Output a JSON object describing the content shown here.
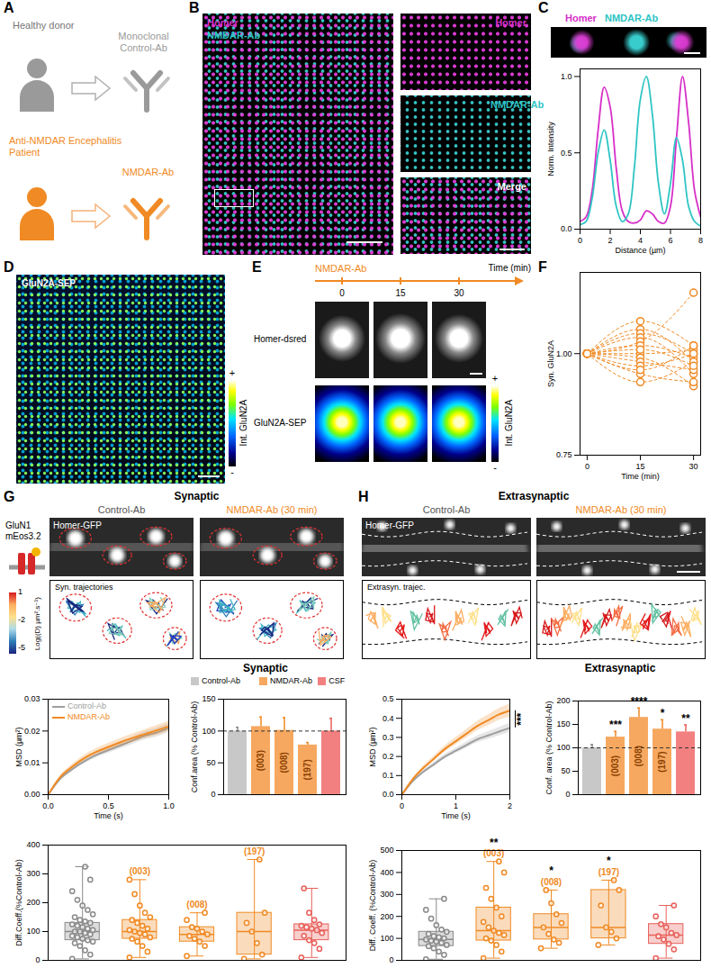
{
  "figure": {
    "letters": [
      "A",
      "B",
      "C",
      "D",
      "E",
      "F",
      "G",
      "H"
    ],
    "A": {
      "donor": "Healthy donor",
      "control_ab": "Monoclonal Control-Ab",
      "patient": "Anti-NMDAR Encephalitis Patient",
      "patient_ab": "NMDAR-Ab"
    },
    "B": {
      "overview": [
        "Homer",
        "NMDAR-Ab"
      ],
      "insets": [
        "Homer",
        "NMDAR-Ab",
        "Merge"
      ]
    },
    "D": {
      "image": "GluN2A-SEP",
      "colorbar": "Int. GluN2A",
      "colorbar_ends": [
        "+",
        "-"
      ]
    },
    "E": {
      "treatment": "NMDAR-Ab",
      "time_label": "Time (min)",
      "times": [
        0,
        15,
        30
      ],
      "rows": [
        "Homer-dsred",
        "GluN2A-SEP"
      ],
      "colorbar": "Int. GluN2A",
      "colorbar_ends": [
        "+",
        "-"
      ]
    },
    "G": {
      "title": "Synaptic",
      "columns": [
        "Control-Ab",
        "NMDAR-Ab (30 min)"
      ],
      "image": "Homer-GFP",
      "trajectories": "Syn. trajectories",
      "probe": [
        "GluN1",
        "mEos3.2"
      ],
      "colorbar": "Log((D) µm².s⁻¹)",
      "colorbar_ticks": [
        1,
        -2,
        -5
      ],
      "charts_title": "Synaptic"
    },
    "H": {
      "title": "Extrasynaptic",
      "columns": [
        "Control-Ab",
        "NMDAR-Ab (30 min)"
      ],
      "image": "Homer-GFP",
      "trajectories": "Extrasyn. trajec.",
      "charts_title": "Extrasynaptic"
    }
  },
  "chart_data": [
    {
      "type": "line",
      "x": [
        0,
        0.4,
        0.8,
        1.2,
        1.6,
        2.0,
        2.4,
        2.8,
        3.2,
        3.6,
        4.0,
        4.4,
        4.8,
        5.2,
        5.6,
        6.0,
        6.4,
        6.8,
        7.2,
        7.6,
        8.0
      ],
      "series": [
        {
          "name": "Homer",
          "color": "#d62fc8",
          "values": [
            0.05,
            0.08,
            0.25,
            0.65,
            0.93,
            0.8,
            0.4,
            0.12,
            0.05,
            0.04,
            0.06,
            0.12,
            0.1,
            0.05,
            0.04,
            0.15,
            0.6,
            1.0,
            0.7,
            0.25,
            0.08
          ]
        },
        {
          "name": "NMDAR-Ab",
          "color": "#2fc4c4",
          "values": [
            0.03,
            0.05,
            0.2,
            0.5,
            0.65,
            0.45,
            0.15,
            0.05,
            0.1,
            0.4,
            0.85,
            1.0,
            0.75,
            0.3,
            0.1,
            0.3,
            0.6,
            0.45,
            0.15,
            0.05,
            0.02
          ]
        }
      ],
      "xlabel": "Distance (µm)",
      "ylabel": "Norm. Intensity",
      "xlim": [
        0,
        8
      ],
      "xticks": [
        0,
        2,
        4,
        6,
        8
      ],
      "ylim": [
        0,
        1.05
      ],
      "yticks": [
        {
          "value": 0,
          "label": "0.0"
        },
        {
          "value": 0.5,
          "label": "0.5"
        },
        {
          "value": 1,
          "label": "1.0"
        }
      ]
    },
    {
      "type": "line",
      "x": [
        0,
        15,
        30
      ],
      "color": "#f08a24",
      "marker": "circle",
      "line_style": "dashed",
      "series": [
        {
          "values": [
            1,
            1.08,
            1.02
          ]
        },
        {
          "values": [
            1,
            1.06,
            0.98
          ]
        },
        {
          "values": [
            1,
            1.05,
            1.0
          ]
        },
        {
          "values": [
            1,
            1.04,
            0.95
          ]
        },
        {
          "values": [
            1,
            1.03,
            1.15
          ]
        },
        {
          "values": [
            1,
            1.02,
            0.99
          ]
        },
        {
          "values": [
            1,
            1.0,
            1.01
          ]
        },
        {
          "values": [
            1,
            0.99,
            0.92
          ]
        },
        {
          "values": [
            1,
            0.98,
            0.96
          ]
        },
        {
          "values": [
            1,
            0.97,
            1.0
          ]
        },
        {
          "values": [
            1,
            0.95,
            0.93
          ]
        },
        {
          "values": [
            1,
            0.93,
            0.98
          ]
        },
        {
          "values": [
            1,
            1.01,
            0.97
          ]
        },
        {
          "values": [
            1,
            0.96,
            1.02
          ]
        }
      ],
      "xlabel": "Time (min)",
      "ylabel": "Syn. GluN2A",
      "xlim": [
        -2,
        32
      ],
      "xticks": [
        0,
        15,
        30
      ],
      "ylim": [
        0.75,
        1.2
      ],
      "yticks": [
        0.75,
        {
          "value": 1,
          "label": "1.00"
        }
      ]
    },
    {
      "type": "line",
      "x": [
        0,
        0.1,
        0.2,
        0.3,
        0.4,
        0.5,
        0.6,
        0.7,
        0.8,
        0.9,
        1.0
      ],
      "series": [
        {
          "name": "Control-Ab",
          "color": "#9e9e9e",
          "values": [
            0,
            0.005,
            0.008,
            0.0105,
            0.0125,
            0.014,
            0.0155,
            0.017,
            0.0185,
            0.0195,
            0.021
          ],
          "sem": [
            0,
            0.0004,
            0.0006,
            0.0008,
            0.0009,
            0.001,
            0.0011,
            0.0012,
            0.0013,
            0.0014,
            0.0015
          ]
        },
        {
          "name": "NMDAR-Ab",
          "color": "#f08a24",
          "values": [
            0,
            0.0055,
            0.0088,
            0.0115,
            0.0135,
            0.015,
            0.0165,
            0.0178,
            0.019,
            0.0202,
            0.0215
          ],
          "sem": [
            0,
            0.0005,
            0.0007,
            0.0009,
            0.001,
            0.0011,
            0.0012,
            0.0013,
            0.0014,
            0.0015,
            0.0016
          ]
        }
      ],
      "xlabel": "Time (s)",
      "ylabel": "MSD (µm²)",
      "xlim": [
        0,
        1
      ],
      "xticks": [
        {
          "value": 0,
          "label": "0.0"
        },
        {
          "value": 0.5,
          "label": "0.5"
        },
        {
          "value": 1,
          "label": "1.0"
        }
      ],
      "ylim": [
        0,
        0.03
      ],
      "yticks": [
        {
          "value": 0,
          "label": "0.00"
        },
        {
          "value": 0.01,
          "label": "0.01"
        },
        {
          "value": 0.02,
          "label": "0.02"
        },
        {
          "value": 0.03,
          "label": "0.03"
        }
      ],
      "legend": "top-left"
    },
    {
      "type": "bar",
      "categories": [
        null,
        "(003)",
        "(008)",
        "(197)",
        null
      ],
      "values": [
        100,
        107,
        101,
        78,
        100
      ],
      "errors": [
        6,
        15,
        20,
        4,
        20
      ],
      "colors": [
        "#c8c8c8",
        "#f6a860",
        "#f6a860",
        "#f6a860",
        "#f28080"
      ],
      "legend_entries": [
        {
          "name": "Control-Ab",
          "color": "#c8c8c8"
        },
        {
          "name": "NMDAR-Ab",
          "color": "#f6a860"
        },
        {
          "name": "CSF",
          "color": "#f28080"
        }
      ],
      "legend": "top",
      "reference": 100,
      "tick_labels": "y",
      "ylabel": "Conf.area (% Control-Ab)",
      "ylim": [
        0,
        150
      ],
      "yticks": [
        0,
        50,
        100,
        150
      ]
    },
    {
      "type": "box",
      "categories": [
        null,
        "(003)",
        "(008)",
        "(197)",
        null
      ],
      "colors": [
        "#8a8a8a",
        "#f08a24",
        "#f08a24",
        "#f08a24",
        "#e8605a"
      ],
      "boxes": [
        {
          "min": 5,
          "q1": 70,
          "median": 100,
          "q3": 130,
          "max": 325,
          "points": [
            5,
            20,
            35,
            50,
            60,
            65,
            70,
            75,
            80,
            85,
            90,
            95,
            100,
            100,
            105,
            110,
            115,
            120,
            125,
            130,
            135,
            140,
            150,
            160,
            175,
            190,
            210,
            240,
            280,
            325
          ]
        },
        {
          "min": 10,
          "q1": 75,
          "median": 100,
          "q3": 140,
          "max": 280,
          "points": [
            10,
            30,
            50,
            65,
            75,
            80,
            90,
            95,
            100,
            105,
            110,
            120,
            130,
            140,
            150,
            165,
            190,
            230,
            280
          ]
        },
        {
          "min": 15,
          "q1": 65,
          "median": 90,
          "q3": 115,
          "max": 165,
          "points": [
            15,
            50,
            65,
            75,
            85,
            90,
            100,
            110,
            115,
            140,
            165
          ]
        },
        {
          "min": 5,
          "q1": 20,
          "median": 100,
          "q3": 165,
          "max": 350,
          "points": [
            5,
            20,
            60,
            100,
            130,
            165,
            350
          ]
        },
        {
          "min": 10,
          "q1": 70,
          "median": 105,
          "q3": 125,
          "max": 250,
          "points": [
            10,
            40,
            60,
            70,
            85,
            95,
            105,
            110,
            115,
            120,
            125,
            140,
            165,
            250
          ]
        }
      ],
      "tick_labels": "y",
      "ylabel": "Diff.Coeff.(%Control-Ab)",
      "ylim": [
        0,
        400
      ],
      "yticks": [
        0,
        100,
        200,
        300,
        400
      ]
    },
    {
      "type": "line",
      "x": [
        0,
        0.2,
        0.4,
        0.6,
        0.8,
        1.0,
        1.2,
        1.4,
        1.6,
        1.8,
        2.0
      ],
      "series": [
        {
          "color": "#9e9e9e",
          "values": [
            0,
            0.07,
            0.12,
            0.16,
            0.2,
            0.23,
            0.26,
            0.29,
            0.31,
            0.33,
            0.35
          ],
          "sem": [
            0,
            0.005,
            0.008,
            0.01,
            0.012,
            0.014,
            0.016,
            0.018,
            0.02,
            0.022,
            0.024
          ]
        },
        {
          "color": "#f08a24",
          "values": [
            0,
            0.08,
            0.14,
            0.19,
            0.24,
            0.28,
            0.32,
            0.36,
            0.39,
            0.42,
            0.44
          ],
          "sem": [
            0,
            0.006,
            0.01,
            0.013,
            0.016,
            0.019,
            0.022,
            0.025,
            0.028,
            0.031,
            0.034
          ]
        }
      ],
      "significance": "***",
      "xlabel": "Time (s)",
      "ylabel": "MSD (µm²)",
      "xlim": [
        0,
        2
      ],
      "xticks": [
        0,
        1,
        2
      ],
      "ylim": [
        0,
        0.5
      ],
      "yticks": [
        {
          "value": 0,
          "label": "0.0"
        },
        {
          "value": 0.1,
          "label": "0.1"
        },
        {
          "value": 0.2,
          "label": "0.2"
        },
        {
          "value": 0.3,
          "label": "0.3"
        },
        {
          "value": 0.4,
          "label": "0.4"
        },
        {
          "value": 0.5,
          "label": "0.5"
        }
      ]
    },
    {
      "type": "bar",
      "categories": [
        null,
        "(003)",
        "(008)",
        "(197)",
        null
      ],
      "values": [
        100,
        123,
        165,
        140,
        134
      ],
      "errors": [
        7,
        12,
        20,
        20,
        15
      ],
      "significance": [
        null,
        "***",
        "****",
        "*",
        "**"
      ],
      "colors": [
        "#c8c8c8",
        "#f6a860",
        "#f6a860",
        "#f6a860",
        "#f28080"
      ],
      "reference": 100,
      "tick_labels": "y",
      "ylabel": "Conf. area (% Control-Ab)",
      "ylim": [
        0,
        200
      ],
      "yticks": [
        0,
        50,
        100,
        150,
        200
      ]
    },
    {
      "type": "box",
      "categories": [
        null,
        "(003)",
        "(008)",
        "(197)",
        null
      ],
      "significance": [
        null,
        "**",
        "*",
        "*",
        null
      ],
      "colors": [
        "#8a8a8a",
        "#f08a24",
        "#f08a24",
        "#f08a24",
        "#e8605a"
      ],
      "boxes": [
        {
          "min": 5,
          "q1": 65,
          "median": 95,
          "q3": 130,
          "max": 280,
          "points": [
            5,
            25,
            40,
            55,
            65,
            70,
            80,
            85,
            90,
            95,
            100,
            105,
            110,
            120,
            130,
            140,
            160,
            190,
            230,
            280
          ]
        },
        {
          "min": 10,
          "q1": 90,
          "median": 135,
          "q3": 240,
          "max": 450,
          "points": [
            10,
            40,
            70,
            90,
            100,
            115,
            125,
            135,
            150,
            175,
            200,
            240,
            280,
            330,
            400,
            450
          ]
        },
        {
          "min": 55,
          "q1": 95,
          "median": 150,
          "q3": 210,
          "max": 320,
          "points": [
            55,
            80,
            95,
            120,
            150,
            170,
            210,
            260,
            320
          ]
        },
        {
          "min": 70,
          "q1": 100,
          "median": 150,
          "q3": 320,
          "max": 365,
          "points": [
            70,
            100,
            130,
            150,
            250,
            320,
            365
          ]
        },
        {
          "min": 10,
          "q1": 75,
          "median": 115,
          "q3": 165,
          "max": 250,
          "points": [
            10,
            50,
            75,
            95,
            110,
            115,
            125,
            150,
            165,
            200,
            250
          ]
        }
      ],
      "tick_labels": "y",
      "ylabel": "Diff. Coeff. (%Control-Ab)",
      "ylim": [
        0,
        500
      ],
      "yticks": [
        0,
        100,
        200,
        300,
        400,
        500
      ]
    }
  ]
}
